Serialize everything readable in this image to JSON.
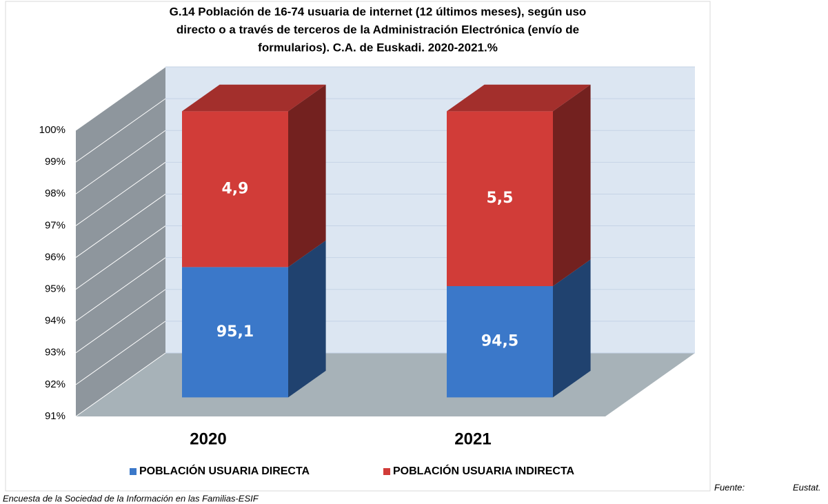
{
  "chart_data": {
    "type": "bar3d_stacked",
    "title": [
      "G.14 Población de 16-74 usuaria de internet (12 últimos meses), según uso",
      "directo o a través de terceros de la Administración Electrónica (envío de",
      "formularios). C.A. de Euskadi. 2020-2021.%"
    ],
    "categories": [
      "2020",
      "2021"
    ],
    "series": [
      {
        "name": "POBLACIÓN USUARIA DIRECTA",
        "color": "#3b78c9",
        "values": [
          95.1,
          94.5
        ],
        "value_labels": [
          "95,1",
          "94,5"
        ]
      },
      {
        "name": "POBLACIÓN USUARIA INDIRECTA",
        "color": "#d13c38",
        "values": [
          4.9,
          5.5
        ],
        "value_labels": [
          "4,9",
          "5,5"
        ]
      }
    ],
    "ylim": [
      91,
      100
    ],
    "yticks": [
      {
        "value": 91,
        "label": "91%"
      },
      {
        "value": 92,
        "label": "92%"
      },
      {
        "value": 93,
        "label": "93%"
      },
      {
        "value": 94,
        "label": "94%"
      },
      {
        "value": 95,
        "label": "95%"
      },
      {
        "value": 96,
        "label": "96%"
      },
      {
        "value": 97,
        "label": "97%"
      },
      {
        "value": 98,
        "label": "98%"
      },
      {
        "value": 99,
        "label": "99%"
      },
      {
        "value": 100,
        "label": "100%"
      }
    ],
    "grid": true,
    "legend": "bottom",
    "source": [
      "Fuente:",
      "Eustat.",
      "Encuesta de la Sociedad de la Información en las Familias-ESIF"
    ]
  }
}
